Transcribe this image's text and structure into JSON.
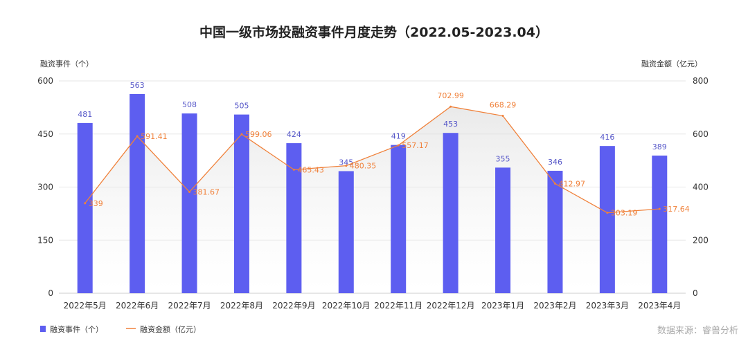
{
  "chart_data": {
    "type": "bar+line",
    "title": "中国一级市场投融资事件月度走势（2022.05-2023.04）",
    "categories": [
      "2022年5月",
      "2022年6月",
      "2022年7月",
      "2022年8月",
      "2022年9月",
      "2022年10月",
      "2022年11月",
      "2022年12月",
      "2023年1月",
      "2023年2月",
      "2023年3月",
      "2023年4月"
    ],
    "series": [
      {
        "name": "融资事件（个）",
        "type": "bar",
        "axis": "left",
        "color": "#5d5ef0",
        "values": [
          481,
          563,
          508,
          505,
          424,
          345,
          419,
          453,
          355,
          346,
          416,
          389
        ]
      },
      {
        "name": "融资金额（亿元）",
        "type": "line",
        "axis": "right",
        "color": "#f0813a",
        "values": [
          339,
          591.41,
          381.67,
          599.06,
          465.43,
          480.35,
          557.17,
          702.99,
          668.29,
          412.97,
          303.19,
          317.64
        ]
      }
    ],
    "ylabel_left": "融资事件（个）",
    "ylim_left": [
      0,
      600
    ],
    "yticks_left": [
      "0",
      "150",
      "300",
      "450",
      "600"
    ],
    "ylabel_right": "融资金额（亿元）",
    "ylim_right": [
      0,
      800
    ],
    "yticks_right": [
      "0",
      "200",
      "400",
      "600",
      "800"
    ],
    "grid": true,
    "legend": "bottom-left"
  },
  "source": "数据来源：睿兽分析"
}
